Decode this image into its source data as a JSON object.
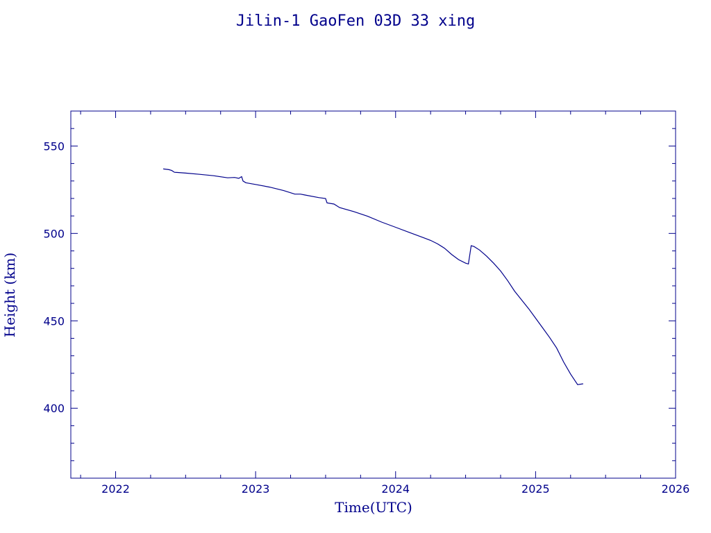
{
  "chart_data": {
    "type": "line",
    "title": "Jilin-1 GaoFen 03D 33 xing",
    "xlabel": "Time(UTC)",
    "ylabel": "Height (km)",
    "xlim": [
      2021.68,
      2026.0
    ],
    "ylim": [
      360,
      570
    ],
    "x_major_ticks": [
      2022,
      2023,
      2024,
      2025,
      2026
    ],
    "x_tick_labels": [
      "2022",
      "2023",
      "2024",
      "2025",
      "2026"
    ],
    "x_minor_step": 0.25,
    "y_major_ticks": [
      400,
      450,
      500,
      550
    ],
    "y_tick_labels": [
      "400",
      "450",
      "500",
      "550"
    ],
    "y_minor_step": 10,
    "grid": false,
    "color": "#00008b",
    "series": [
      {
        "x": [
          2022.34,
          2022.38,
          2022.4,
          2022.42,
          2022.5,
          2022.6,
          2022.7,
          2022.8,
          2022.85,
          2022.88,
          2022.9,
          2022.91,
          2022.93,
          2023.0,
          2023.1,
          2023.2,
          2023.28,
          2023.32,
          2023.35,
          2023.45,
          2023.5,
          2023.51,
          2023.56,
          2023.6,
          2023.7,
          2023.8,
          2023.9,
          2024.0,
          2024.1,
          2024.2,
          2024.25,
          2024.3,
          2024.35,
          2024.4,
          2024.45,
          2024.5,
          2024.52,
          2024.54,
          2024.56,
          2024.6,
          2024.65,
          2024.7,
          2024.75,
          2024.8,
          2024.85,
          2024.9,
          2024.95,
          2025.0,
          2025.05,
          2025.1,
          2025.15,
          2025.2,
          2025.25,
          2025.3,
          2025.34
        ],
        "y": [
          536.9,
          536.5,
          536.0,
          535.0,
          534.5,
          533.8,
          533.0,
          531.8,
          532.0,
          531.5,
          532.5,
          530.0,
          529.0,
          528.0,
          526.5,
          524.5,
          522.5,
          522.5,
          522.0,
          520.5,
          520.0,
          517.5,
          516.8,
          514.8,
          512.5,
          509.8,
          506.5,
          503.5,
          500.5,
          497.5,
          496.0,
          494.0,
          491.5,
          488.0,
          485.0,
          483.0,
          482.5,
          493.0,
          492.5,
          490.5,
          487.0,
          483.0,
          478.5,
          473.0,
          467.0,
          462.0,
          457.0,
          451.5,
          446.0,
          440.5,
          434.5,
          426.5,
          419.5,
          413.5,
          414.0
        ]
      }
    ]
  }
}
